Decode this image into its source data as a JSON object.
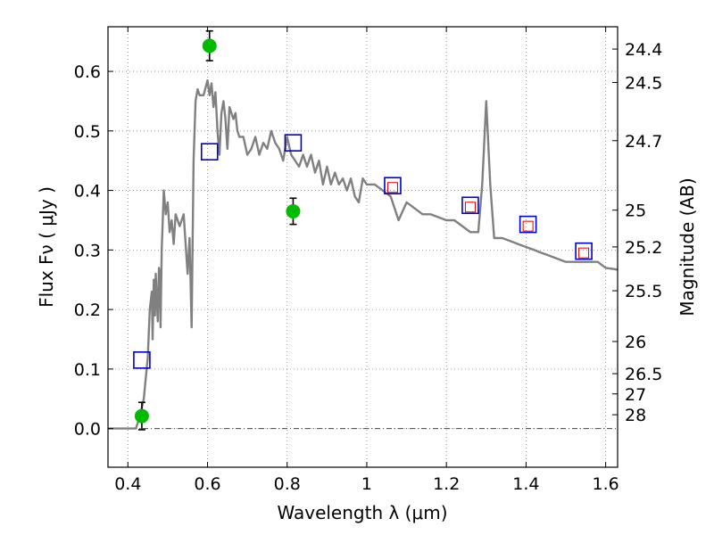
{
  "chart_data": {
    "type": "scatter",
    "title": "",
    "xlabel": "Wavelength  λ (μm)",
    "ylabel": "Flux  Fν  ( μJy )",
    "y2label": "Magnitude (AB)",
    "xlim": [
      0.35,
      1.63
    ],
    "ylim": [
      -0.065,
      0.675
    ],
    "grid": true,
    "xticks": [
      0.4,
      0.6,
      0.8,
      1.0,
      1.2,
      1.4,
      1.6
    ],
    "xtick_labels": [
      "0.4",
      "0.6",
      "0.8",
      "1",
      "1.2",
      "1.4",
      "1.6"
    ],
    "yticks": [
      0.0,
      0.1,
      0.2,
      0.3,
      0.4,
      0.5,
      0.6
    ],
    "ytick_labels": [
      "0.0",
      "0.1",
      "0.2",
      "0.3",
      "0.4",
      "0.5",
      "0.6"
    ],
    "y2_ticks": [
      {
        "label": "24.4",
        "flux": 0.6375
      },
      {
        "label": "24.5",
        "flux": 0.5814
      },
      {
        "label": "24.7",
        "flux": 0.4836
      },
      {
        "label": "25",
        "flux": 0.3669
      },
      {
        "label": "25.2",
        "flux": 0.3051
      },
      {
        "label": "25.5",
        "flux": 0.2315
      },
      {
        "label": "26",
        "flux": 0.1462
      },
      {
        "label": "26.5",
        "flux": 0.0922
      },
      {
        "label": "27",
        "flux": 0.0582
      },
      {
        "label": "28",
        "flux": 0.0232
      }
    ],
    "colors": {
      "model": "#808080",
      "open_squares": "#0000cc",
      "small_squares": "#dd0000",
      "green_points": "#00bb00",
      "zero_line": "#444444",
      "grid": "#888888"
    },
    "series": [
      {
        "name": "model spectrum",
        "kind": "line",
        "x": [
          0.35,
          0.42,
          0.43,
          0.44,
          0.45,
          0.455,
          0.46,
          0.462,
          0.465,
          0.468,
          0.47,
          0.475,
          0.478,
          0.48,
          0.482,
          0.485,
          0.49,
          0.495,
          0.5,
          0.505,
          0.51,
          0.515,
          0.52,
          0.53,
          0.54,
          0.55,
          0.555,
          0.56,
          0.565,
          0.57,
          0.575,
          0.58,
          0.59,
          0.6,
          0.605,
          0.61,
          0.615,
          0.62,
          0.625,
          0.63,
          0.635,
          0.64,
          0.645,
          0.65,
          0.655,
          0.66,
          0.665,
          0.67,
          0.675,
          0.68,
          0.69,
          0.7,
          0.71,
          0.72,
          0.73,
          0.74,
          0.75,
          0.76,
          0.77,
          0.78,
          0.79,
          0.8,
          0.81,
          0.82,
          0.83,
          0.84,
          0.85,
          0.86,
          0.87,
          0.88,
          0.89,
          0.9,
          0.91,
          0.92,
          0.93,
          0.94,
          0.95,
          0.96,
          0.97,
          0.98,
          0.99,
          1.0,
          1.02,
          1.04,
          1.06,
          1.08,
          1.1,
          1.12,
          1.14,
          1.16,
          1.18,
          1.2,
          1.22,
          1.24,
          1.26,
          1.28,
          1.29,
          1.3,
          1.31,
          1.32,
          1.34,
          1.36,
          1.38,
          1.4,
          1.42,
          1.44,
          1.46,
          1.48,
          1.5,
          1.52,
          1.54,
          1.56,
          1.58,
          1.6,
          1.62,
          1.63
        ],
        "y": [
          0.0,
          0.0,
          0.02,
          0.05,
          0.12,
          0.2,
          0.23,
          0.15,
          0.25,
          0.19,
          0.26,
          0.18,
          0.27,
          0.26,
          0.17,
          0.3,
          0.4,
          0.36,
          0.38,
          0.33,
          0.35,
          0.31,
          0.36,
          0.34,
          0.36,
          0.26,
          0.32,
          0.17,
          0.45,
          0.55,
          0.57,
          0.56,
          0.56,
          0.585,
          0.56,
          0.58,
          0.54,
          0.565,
          0.5,
          0.46,
          0.53,
          0.55,
          0.52,
          0.47,
          0.54,
          0.53,
          0.52,
          0.53,
          0.5,
          0.49,
          0.49,
          0.46,
          0.47,
          0.49,
          0.46,
          0.48,
          0.47,
          0.5,
          0.48,
          0.47,
          0.45,
          0.49,
          0.46,
          0.45,
          0.44,
          0.46,
          0.44,
          0.46,
          0.43,
          0.45,
          0.41,
          0.44,
          0.41,
          0.43,
          0.41,
          0.42,
          0.4,
          0.42,
          0.39,
          0.38,
          0.42,
          0.41,
          0.41,
          0.4,
          0.39,
          0.35,
          0.38,
          0.37,
          0.36,
          0.36,
          0.355,
          0.35,
          0.35,
          0.34,
          0.33,
          0.33,
          0.41,
          0.55,
          0.41,
          0.32,
          0.32,
          0.315,
          0.31,
          0.305,
          0.3,
          0.295,
          0.29,
          0.285,
          0.28,
          0.28,
          0.28,
          0.28,
          0.28,
          0.27,
          0.268,
          0.267
        ]
      },
      {
        "name": "photometry (open squares)",
        "kind": "square",
        "x": [
          0.435,
          0.605,
          0.815,
          1.065,
          1.26,
          1.405,
          1.545
        ],
        "y": [
          0.115,
          0.465,
          0.48,
          0.408,
          0.375,
          0.343,
          0.298
        ]
      },
      {
        "name": "synthetic photometry (small squares)",
        "kind": "small-square",
        "x": [
          1.065,
          1.26,
          1.405,
          1.545
        ],
        "y": [
          0.405,
          0.372,
          0.34,
          0.295
        ]
      },
      {
        "name": "observed (filled circles)",
        "kind": "point",
        "x": [
          0.435,
          0.605,
          0.815
        ],
        "y": [
          0.021,
          0.643,
          0.365
        ],
        "yerr": [
          0.023,
          0.025,
          0.022
        ]
      }
    ]
  }
}
